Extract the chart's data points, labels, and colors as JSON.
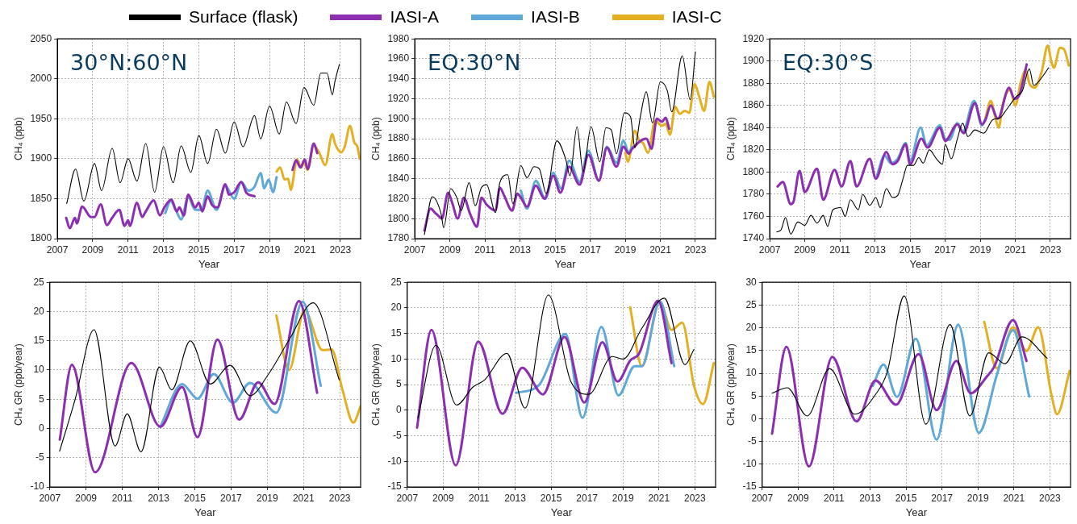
{
  "chart_data": [
    {
      "type": "line",
      "xlabel": "Year",
      "ylabel": "CH₄ (ppb)",
      "annotations": [
        "30°N:60°N"
      ],
      "xlim": [
        2007,
        2024.15
      ],
      "xticks": [
        2007,
        2009,
        2011,
        2013,
        2015,
        2017,
        2019,
        2021,
        2023
      ],
      "ylim": [
        1800,
        2050
      ],
      "yticks": [
        1800,
        1850,
        1900,
        1950,
        2000,
        2050
      ],
      "grid": true,
      "marker": "none",
      "legend": "top",
      "series": [
        {
          "name": "Surface (flask)",
          "color": "#000000",
          "x": [
            2007.53,
            2008.03,
            2008.5,
            2009.1,
            2009.5,
            2010.1,
            2010.55,
            2011.0,
            2011.5,
            2012.0,
            2012.5,
            2013.0,
            2013.55,
            2014.0,
            2014.55,
            2015.0,
            2015.5,
            2016.0,
            2016.5,
            2017.0,
            2017.5,
            2018.15,
            2018.5,
            2019.0,
            2019.55,
            2019.95,
            2020.5,
            2020.95,
            2021.5,
            2021.9,
            2022.25,
            2022.55,
            2022.7,
            2022.95
          ],
          "values": [
            1844,
            1887,
            1847,
            1894,
            1860,
            1913,
            1870,
            1900,
            1872,
            1919,
            1858,
            1915,
            1870,
            1916,
            1883,
            1929,
            1894,
            1937,
            1907,
            1946,
            1915,
            1954,
            1925,
            1966,
            1931,
            1971,
            1944,
            1989,
            1967,
            2007,
            2007,
            1980,
            1997,
            2018
          ]
        },
        {
          "name": "IASI-A",
          "color": "#8b2fb0",
          "x": [
            2007.5,
            2007.7,
            2008.0,
            2008.1,
            2008.4,
            2008.9,
            2009.1,
            2009.45,
            2009.8,
            2010.1,
            2010.5,
            2010.8,
            2011.0,
            2011.1,
            2011.5,
            2011.8,
            2012.0,
            2012.45,
            2012.8,
            2013.05,
            2013.45,
            2013.75,
            2013.9,
            2014.15,
            2014.4,
            2014.8,
            2015.0,
            2015.2,
            2015.5,
            2015.75,
            2016.05,
            2016.5,
            2016.7,
            2017.0,
            2017.4,
            2017.7,
            2018.15,
            2019.0,
            2020.3,
            2020.5,
            2020.75,
            2021.0,
            2021.15,
            2021.5,
            2021.7
          ],
          "values": [
            1826,
            1813,
            1826,
            1819,
            1840,
            1827,
            1827,
            1843,
            1817,
            1826,
            1836,
            1816,
            1823,
            1816,
            1845,
            1827,
            1834,
            1848,
            1829,
            1839,
            1849,
            1834,
            1839,
            1829,
            1855,
            1839,
            1845,
            1834,
            1853,
            1842,
            1839,
            1868,
            1855,
            1858,
            1871,
            1857,
            1853,
            null,
            1886,
            1898,
            1889,
            1899,
            1887,
            1919,
            1907
          ]
        },
        {
          "name": "IASI-B",
          "color": "#5fa8d8",
          "x": [
            2013.1,
            2013.4,
            2013.7,
            2014.0,
            2014.4,
            2014.8,
            2015.15,
            2015.5,
            2016.0,
            2016.5,
            2017.0,
            2017.4,
            2017.8,
            2018.15,
            2018.5,
            2018.7,
            2018.95,
            2019.2,
            2019.4
          ],
          "values": [
            1832,
            1847,
            1836,
            1824,
            1852,
            1836,
            1836,
            1860,
            1836,
            1866,
            1850,
            1871,
            1860,
            1865,
            1882,
            1863,
            1874,
            1858,
            1877
          ]
        },
        {
          "name": "IASI-C",
          "color": "#e3b024",
          "x": [
            2019.4,
            2019.6,
            2019.85,
            2020.05,
            2020.2,
            2020.55,
            2020.8,
            2020.95,
            2021.15,
            2021.5,
            2021.8,
            2022.15,
            2022.55,
            2022.7,
            2023.05,
            2023.25,
            2023.55,
            2023.8,
            2023.95,
            2024.1
          ],
          "values": [
            1884,
            1889,
            1874,
            1875,
            1861,
            1899,
            1889,
            1897,
            1886,
            1916,
            1908,
            1892,
            1931,
            1919,
            1908,
            1915,
            1941,
            1920,
            1916,
            1900
          ]
        }
      ]
    },
    {
      "type": "line",
      "xlabel": "Year",
      "ylabel": "CH₄ (ppb)",
      "annotations": [
        "EQ:30°N"
      ],
      "xlim": [
        2007,
        2024.15
      ],
      "xticks": [
        2007,
        2009,
        2011,
        2013,
        2015,
        2017,
        2019,
        2021,
        2023
      ],
      "ylim": [
        1780,
        1980
      ],
      "yticks": [
        1780,
        1800,
        1820,
        1840,
        1860,
        1880,
        1900,
        1920,
        1940,
        1960,
        1980
      ],
      "grid": true,
      "marker": "none",
      "series": [
        {
          "color": "#000000",
          "x": [
            2007.55,
            2008.0,
            2008.5,
            2008.65,
            2009.05,
            2009.4,
            2009.65,
            2010.1,
            2010.45,
            2010.8,
            2011.1,
            2011.6,
            2011.85,
            2012.3,
            2012.6,
            2013.05,
            2013.4,
            2013.8,
            2014.1,
            2014.5,
            2015.1,
            2015.6,
            2015.85,
            2016.25,
            2016.6,
            2017.05,
            2017.55,
            2017.9,
            2018.2,
            2018.5,
            2018.95,
            2019.3,
            2019.55,
            2019.85,
            2020.2,
            2020.55,
            2021.0,
            2021.4,
            2021.65,
            2022.25,
            2022.7,
            2023.0
          ],
          "values": [
            1784,
            1822,
            1805,
            1791,
            1830,
            1821,
            1808,
            1836,
            1813,
            1831,
            1834,
            1806,
            1836,
            1844,
            1815,
            1853,
            1841,
            1852,
            1850,
            1825,
            1878,
            1860,
            1843,
            1892,
            1847,
            1892,
            1857,
            1891,
            1889,
            1865,
            1906,
            1902,
            1871,
            1901,
            1927,
            1896,
            1937,
            1928,
            1907,
            1963,
            1919,
            1967
          ]
        },
        {
          "color": "#8b2fb0",
          "x": [
            2007.55,
            2007.9,
            2008.15,
            2008.4,
            2008.55,
            2008.9,
            2009.15,
            2009.45,
            2009.8,
            2010.15,
            2010.55,
            2010.8,
            2011.1,
            2011.6,
            2011.85,
            2012.1,
            2012.55,
            2012.85,
            2013.05,
            2013.4,
            2013.9,
            2014.4,
            2014.9,
            2015.3,
            2015.8,
            2016.4,
            2016.9,
            2017.5,
            2017.95,
            2018.5,
            2018.9,
            2019.2,
            2019.4,
            2020.2,
            2020.5,
            2020.8,
            2021.1,
            2021.3,
            2021.5
          ],
          "values": [
            1788,
            1810,
            1806,
            1802,
            1800,
            1826,
            1815,
            1800,
            1821,
            1805,
            1792,
            1821,
            1814,
            1808,
            1831,
            1823,
            1808,
            1825,
            1821,
            1812,
            1833,
            1820,
            1843,
            1826,
            1852,
            1834,
            1864,
            1838,
            1871,
            1852,
            1872,
            1865,
            1870,
            1880,
            1870,
            1900,
            1897,
            1901,
            1890
          ]
        },
        {
          "color": "#5fa8d8",
          "x": [
            2013.05,
            2013.4,
            2013.9,
            2014.45,
            2014.9,
            2015.35,
            2015.8,
            2016.4,
            2016.9,
            2017.5,
            2017.95,
            2018.5,
            2018.9,
            2019.2,
            2019.4
          ],
          "values": [
            1828,
            1810,
            1838,
            1820,
            1846,
            1830,
            1858,
            1837,
            1868,
            1838,
            1872,
            1856,
            1878,
            1866,
            1872
          ]
        },
        {
          "color": "#e3b024",
          "x": [
            2019.0,
            2019.15,
            2019.55,
            2019.8,
            2020.0,
            2020.3,
            2020.7,
            2021.1,
            2021.3,
            2021.55,
            2021.85,
            2022.1,
            2022.4,
            2022.65,
            2022.95,
            2023.2,
            2023.5,
            2023.8,
            2024.05
          ],
          "values": [
            1866,
            1857,
            1888,
            1878,
            1876,
            1866,
            1898,
            1893,
            1895,
            1884,
            1912,
            1905,
            1908,
            1906,
            1935,
            1923,
            1908,
            1937,
            1922
          ]
        }
      ]
    },
    {
      "type": "line",
      "xlabel": "Year",
      "ylabel": "CH₄ (ppb)",
      "annotations": [
        "EQ:30°S"
      ],
      "xlim": [
        2007,
        2024.15
      ],
      "xticks": [
        2007,
        2009,
        2011,
        2013,
        2015,
        2017,
        2019,
        2021,
        2023
      ],
      "ylim": [
        1740,
        1920
      ],
      "yticks": [
        1740,
        1760,
        1780,
        1800,
        1820,
        1840,
        1860,
        1880,
        1900,
        1920
      ],
      "grid": true,
      "marker": "none",
      "series": [
        {
          "color": "#000000",
          "x": [
            2007.4,
            2007.65,
            2007.9,
            2008.2,
            2008.6,
            2009.0,
            2009.35,
            2009.7,
            2010.05,
            2010.3,
            2010.6,
            2011.05,
            2011.3,
            2011.6,
            2012.05,
            2012.3,
            2012.7,
            2013.05,
            2013.3,
            2013.65,
            2014.0,
            2014.3,
            2014.6,
            2014.85,
            2015.2,
            2015.5,
            2015.75,
            2016.1,
            2016.5,
            2016.85,
            2017.0,
            2017.35,
            2017.7,
            2018.0,
            2018.3,
            2018.7,
            2019.2,
            2019.7,
            2020.15,
            2020.4,
            2021.05,
            2021.4,
            2021.8,
            2022.05,
            2022.55,
            2022.9
          ],
          "values": [
            1746,
            1748,
            1759,
            1744,
            1755,
            1752,
            1761,
            1754,
            1761,
            1751,
            1766,
            1768,
            1760,
            1775,
            1766,
            1780,
            1770,
            1777,
            1768,
            1785,
            1777,
            1779,
            1794,
            1806,
            1806,
            1813,
            1808,
            1820,
            1812,
            1807,
            1825,
            1812,
            1830,
            1844,
            1832,
            1838,
            1835,
            1847,
            1849,
            1854,
            1868,
            1873,
            1893,
            1878,
            1886,
            1894
          ]
        },
        {
          "color": "#8b2fb0",
          "x": [
            2007.45,
            2007.75,
            2008.2,
            2008.35,
            2008.7,
            2009.0,
            2009.7,
            2010.05,
            2010.7,
            2011.1,
            2011.6,
            2011.95,
            2012.7,
            2013.05,
            2013.65,
            2014.0,
            2014.3,
            2014.75,
            2015.0,
            2015.65,
            2016.0,
            2016.7,
            2017.0,
            2017.7,
            2018.05,
            2018.7,
            2019.1,
            2019.3,
            2019.6,
            2020.0,
            2020.65,
            2020.95,
            2021.25,
            2021.65
          ],
          "values": [
            1787,
            1791,
            1771,
            1773,
            1801,
            1782,
            1803,
            1775,
            1802,
            1787,
            1810,
            1787,
            1812,
            1794,
            1818,
            1807,
            1810,
            1825,
            1807,
            1830,
            1822,
            1840,
            1828,
            1843,
            1835,
            1862,
            1843,
            1847,
            1860,
            1848,
            1876,
            1866,
            1870,
            1897
          ]
        },
        {
          "color": "#5fa8d8",
          "x": [
            2013.1,
            2013.55,
            2013.9,
            2014.3,
            2014.75,
            2015.0,
            2015.6,
            2015.95,
            2016.7,
            2017.0,
            2017.25,
            2017.7,
            2018.0,
            2018.65,
            2019.1,
            2019.3
          ],
          "values": [
            1796,
            1815,
            1808,
            1812,
            1826,
            1810,
            1840,
            1824,
            1842,
            1830,
            1829,
            1844,
            1836,
            1864,
            1842,
            1848
          ]
        },
        {
          "color": "#e3b024",
          "x": [
            2019.3,
            2019.6,
            2019.85,
            2020.05,
            2020.3,
            2020.7,
            2021.0,
            2021.3,
            2021.6,
            2021.8,
            2022.1,
            2022.5,
            2022.85,
            2023.05,
            2023.2,
            2023.55,
            2023.8,
            2024.05
          ],
          "values": [
            1849,
            1864,
            1850,
            1840,
            1862,
            1874,
            1860,
            1880,
            1892,
            1880,
            1876,
            1890,
            1914,
            1900,
            1894,
            1912,
            1910,
            1896
          ]
        }
      ]
    },
    {
      "type": "line",
      "xlabel": "Year",
      "ylabel": "CH₄ GR (ppb/year)",
      "xlim": [
        2007,
        2024.15
      ],
      "xticks": [
        2007,
        2009,
        2011,
        2013,
        2015,
        2017,
        2019,
        2021,
        2023
      ],
      "ylim": [
        -10,
        25
      ],
      "yticks": [
        -10,
        -5,
        0,
        5,
        10,
        15,
        20,
        25
      ],
      "grid": true,
      "marker": "none",
      "series": [
        {
          "color": "#000000",
          "x": [
            2007.54,
            2008.4,
            2009.44,
            2010.6,
            2011.27,
            2012.03,
            2013.05,
            2013.73,
            2014.75,
            2015.85,
            2016.95,
            2018.05,
            2019.07,
            2020.25,
            2021.53,
            2022.97
          ],
          "values": [
            -3.9,
            5,
            16.9,
            -3.0,
            2.5,
            -4.0,
            10.5,
            6.6,
            15.0,
            7.6,
            10.8,
            5.6,
            9.3,
            15.4,
            21.5,
            8.3
          ]
        },
        {
          "color": "#8b2fb0",
          "x": [
            2007.55,
            2008.22,
            2009.5,
            2011.5,
            2013.1,
            2014.3,
            2015.15,
            2016.25,
            2017.45,
            2018.5,
            2019.4,
            2020.75,
            2021.75
          ],
          "values": [
            -1.9,
            10.9,
            -7.5,
            11.2,
            0.3,
            7.1,
            -1.5,
            15.2,
            1.5,
            7.9,
            4.2,
            21.8,
            6.1
          ]
        },
        {
          "color": "#5fa8d8",
          "x": [
            2013.1,
            2014.3,
            2015.15,
            2016.05,
            2017.1,
            2018.05,
            2019.5,
            2020.95,
            2021.95
          ],
          "values": [
            0.3,
            7.6,
            5.1,
            9.3,
            4.4,
            7.8,
            2.7,
            21.7,
            7.3
          ]
        },
        {
          "color": "#e3b024",
          "x": [
            2019.5,
            2020.2,
            2021.05,
            2022.05,
            2022.55,
            2023.15,
            2023.75,
            2024.15
          ],
          "values": [
            19.3,
            10.0,
            20.2,
            13.4,
            13.5,
            6.6,
            1.0,
            3.8
          ]
        }
      ]
    },
    {
      "type": "line",
      "xlabel": "Year",
      "ylabel": "CH₄ GR (ppb/year)",
      "xlim": [
        2007,
        2024.15
      ],
      "xticks": [
        2007,
        2009,
        2011,
        2013,
        2015,
        2017,
        2019,
        2021,
        2023
      ],
      "ylim": [
        -15,
        25
      ],
      "yticks": [
        -15,
        -10,
        -5,
        0,
        5,
        10,
        15,
        20,
        25
      ],
      "grid": true,
      "marker": "none",
      "series": [
        {
          "color": "#000000",
          "x": [
            2007.6,
            2008.6,
            2009.75,
            2010.65,
            2011.3,
            2012.55,
            2013.55,
            2014.85,
            2016.1,
            2017.1,
            2018.4,
            2019.0,
            2020.05,
            2021.3,
            2022.45,
            2022.95
          ],
          "values": [
            -1.5,
            12.7,
            1.0,
            4.5,
            5.9,
            11.1,
            0.4,
            22.5,
            5.6,
            3.1,
            10.5,
            10.0,
            16.0,
            21.9,
            8.9,
            11.9
          ]
        },
        {
          "color": "#8b2fb0",
          "x": [
            2007.55,
            2008.35,
            2009.7,
            2010.95,
            2012.3,
            2013.4,
            2014.55,
            2015.75,
            2016.85,
            2017.85,
            2018.7,
            2019.4,
            2019.9,
            2020.95,
            2021.7
          ],
          "values": [
            -3.4,
            15.7,
            -10.8,
            13.4,
            -0.7,
            8.3,
            3.1,
            14.3,
            1.5,
            13.3,
            5.6,
            9.7,
            11.1,
            21.4,
            9.2
          ]
        },
        {
          "color": "#5fa8d8",
          "x": [
            2013.05,
            2014.3,
            2015.8,
            2016.75,
            2017.8,
            2018.75,
            2019.65,
            2020.05,
            2021.05,
            2021.85
          ],
          "values": [
            3.4,
            4.8,
            14.9,
            -1.5,
            16.3,
            2.9,
            8.6,
            8.6,
            21.3,
            8.6
          ]
        },
        {
          "color": "#e3b024",
          "x": [
            2019.4,
            2020.05,
            2021.05,
            2021.7,
            2022.3,
            2022.95,
            2023.45,
            2024.05
          ],
          "values": [
            20.1,
            8.6,
            21.2,
            15.7,
            17.1,
            4.8,
            1.2,
            9.2
          ]
        }
      ]
    },
    {
      "type": "line",
      "xlabel": "Year",
      "ylabel": "CH₄ GR (ppb/year)",
      "xlim": [
        2007,
        2024.15
      ],
      "xticks": [
        2007,
        2009,
        2011,
        2013,
        2015,
        2017,
        2019,
        2021,
        2023
      ],
      "ylim": [
        -15,
        30
      ],
      "yticks": [
        -15,
        -10,
        -5,
        0,
        5,
        10,
        15,
        20,
        25,
        30
      ],
      "grid": true,
      "marker": "none",
      "series": [
        {
          "color": "#000000",
          "x": [
            2007.55,
            2008.4,
            2009.5,
            2010.75,
            2012.15,
            2013.3,
            2013.95,
            2014.9,
            2016.1,
            2017.45,
            2018.55,
            2019.6,
            2020.5,
            2021.45,
            2022.85
          ],
          "values": [
            5.6,
            6.8,
            0.6,
            11.0,
            1.0,
            5.3,
            10.2,
            27.0,
            -1.2,
            20.7,
            0.6,
            14.5,
            12.1,
            18.0,
            13.3
          ]
        },
        {
          "color": "#8b2fb0",
          "x": [
            2007.55,
            2008.35,
            2009.6,
            2010.9,
            2012.25,
            2013.3,
            2014.45,
            2015.7,
            2016.7,
            2017.8,
            2018.6,
            2019.5,
            2019.9,
            2020.95,
            2021.7
          ],
          "values": [
            -3.3,
            15.8,
            -10.5,
            13.6,
            -0.6,
            8.4,
            3.1,
            14.2,
            1.9,
            12.7,
            5.6,
            9.3,
            11.4,
            21.7,
            12.7
          ]
        },
        {
          "color": "#5fa8d8",
          "x": [
            2013.15,
            2013.75,
            2014.5,
            2015.55,
            2016.7,
            2017.9,
            2019.05,
            2020.05,
            2020.95,
            2021.85
          ],
          "values": [
            7.2,
            11.9,
            4.8,
            17.6,
            -4.6,
            20.7,
            -3.1,
            9.6,
            19.5,
            4.9
          ]
        },
        {
          "color": "#e3b024",
          "x": [
            2019.35,
            2020.05,
            2020.95,
            2021.7,
            2022.35,
            2023.1,
            2023.4,
            2024.1
          ],
          "values": [
            21.3,
            11.1,
            20.1,
            14.9,
            20.1,
            5.0,
            1.0,
            10.5
          ]
        }
      ]
    }
  ]
}
